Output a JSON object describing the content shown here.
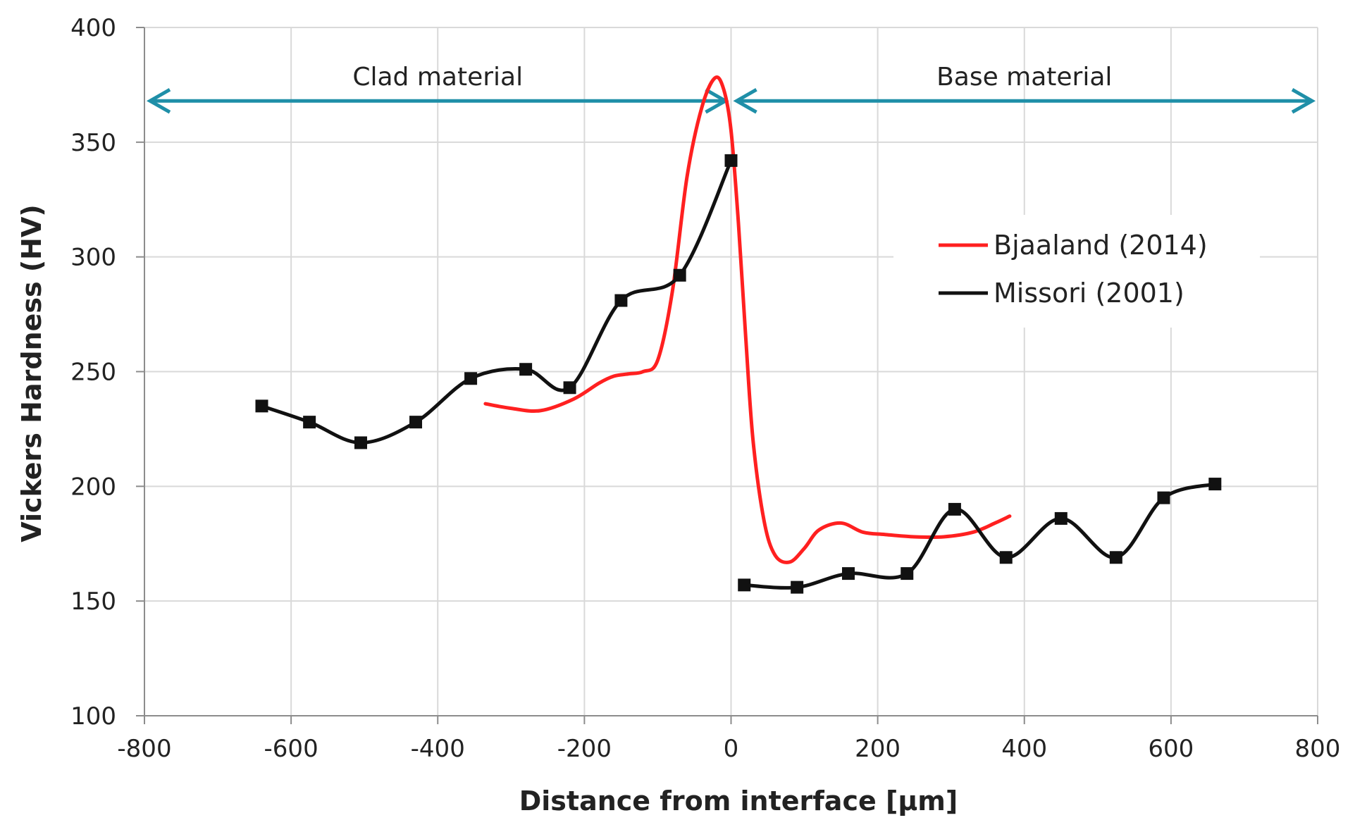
{
  "chart_data": {
    "type": "line",
    "title": "",
    "xlabel": "Distance from interface [μm]",
    "ylabel": "Vickers Hardness (HV)",
    "xlim": [
      -800,
      800
    ],
    "ylim": [
      100,
      400
    ],
    "xticks": [
      -800,
      -600,
      -400,
      -200,
      0,
      200,
      400,
      600,
      800
    ],
    "xtick_labels": [
      "-800",
      "-600",
      "-400",
      "-200",
      "0",
      "200",
      "400",
      "600",
      "800"
    ],
    "yticks": [
      100,
      150,
      200,
      250,
      300,
      350,
      400
    ],
    "ytick_labels": [
      "100",
      "150",
      "200",
      "250",
      "300",
      "350",
      "400"
    ],
    "grid": true,
    "legend_position": "top-right",
    "regions": [
      {
        "label": "Clad material",
        "x_start": -800,
        "x_end": 0,
        "y": 368,
        "color": "#1f8fa8"
      },
      {
        "label": "Base material",
        "x_start": 0,
        "x_end": 800,
        "y": 368,
        "color": "#1f8fa8"
      }
    ],
    "series": [
      {
        "name": "Bjaaland (2014)",
        "color": "#ff2020",
        "markers": false,
        "x": [
          -335,
          -300,
          -260,
          -215,
          -180,
          -160,
          -140,
          -120,
          -100,
          -80,
          -60,
          -40,
          -22,
          -10,
          0,
          10,
          20,
          30,
          45,
          60,
          80,
          100,
          120,
          150,
          180,
          210,
          250,
          290,
          330,
          360,
          380
        ],
        "y": [
          236,
          234,
          233,
          238,
          245,
          248,
          249,
          250,
          255,
          285,
          335,
          365,
          378,
          373,
          355,
          315,
          265,
          220,
          185,
          170,
          167,
          173,
          181,
          184,
          180,
          179,
          178,
          178,
          180,
          184,
          187
        ]
      },
      {
        "name": "Missori (2001)",
        "color": "#111111",
        "markers": true,
        "segments": [
          {
            "x": [
              -640,
              -575,
              -505,
              -430,
              -355,
              -280,
              -220,
              -150,
              -70,
              0
            ],
            "y": [
              235,
              228,
              219,
              228,
              247,
              251,
              243,
              281,
              292,
              342
            ]
          },
          {
            "x": [
              18,
              90,
              160,
              240,
              305,
              375,
              450,
              525,
              590,
              660
            ],
            "y": [
              157,
              156,
              162,
              162,
              190,
              169,
              186,
              169,
              195,
              201
            ]
          }
        ]
      }
    ]
  }
}
